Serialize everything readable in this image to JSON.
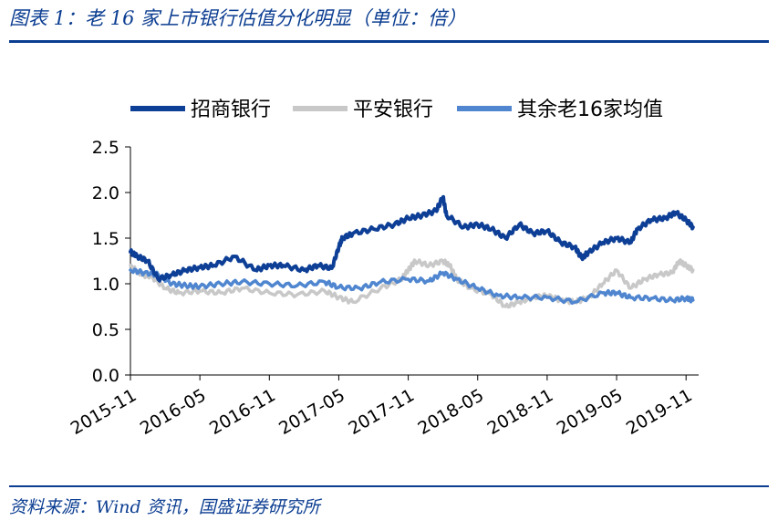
{
  "header": {
    "title": "图表 1：老 16 家上市银行估值分化明显（单位：倍）"
  },
  "footer": {
    "source": "资料来源：Wind 资讯，国盛证券研究所"
  },
  "colors": {
    "accent": "#0b3d91"
  },
  "chart_data": {
    "type": "line",
    "title": "",
    "xlabel": "",
    "ylabel": "",
    "ylim": [
      0,
      2.5
    ],
    "yticks": [
      "0.0",
      "0.5",
      "1.0",
      "1.5",
      "2.0",
      "2.5"
    ],
    "xticks": [
      "2015-11",
      "2016-05",
      "2016-11",
      "2017-05",
      "2017-11",
      "2018-05",
      "2018-11",
      "2019-05",
      "2019-11"
    ],
    "grid": false,
    "legend_position": "top",
    "series": [
      {
        "name": "招商银行",
        "color": "#0e3f96",
        "x": [
          0,
          0.1,
          0.25,
          0.4,
          0.6,
          0.8,
          1.0,
          1.2,
          1.5,
          1.8,
          2.0,
          2.2,
          2.5,
          2.7,
          2.9,
          3.0,
          3.05,
          3.2,
          3.5,
          3.8,
          4.0,
          4.2,
          4.4,
          4.5,
          4.55,
          4.8,
          5.0,
          5.2,
          5.4,
          5.6,
          5.8,
          6.0,
          6.2,
          6.4,
          6.5,
          6.6,
          6.8,
          7.0,
          7.2,
          7.3,
          7.5,
          7.7,
          7.85,
          8.0,
          8.1
        ],
        "y": [
          1.35,
          1.3,
          1.25,
          1.05,
          1.1,
          1.15,
          1.18,
          1.2,
          1.3,
          1.15,
          1.2,
          1.2,
          1.15,
          1.2,
          1.17,
          1.4,
          1.5,
          1.55,
          1.6,
          1.65,
          1.72,
          1.75,
          1.8,
          1.95,
          1.75,
          1.62,
          1.65,
          1.6,
          1.5,
          1.65,
          1.55,
          1.58,
          1.45,
          1.4,
          1.28,
          1.35,
          1.45,
          1.5,
          1.45,
          1.6,
          1.7,
          1.72,
          1.78,
          1.7,
          1.62
        ]
      },
      {
        "name": "平安银行",
        "color": "#c8c8c8",
        "x": [
          0,
          0.15,
          0.3,
          0.5,
          0.7,
          1.0,
          1.3,
          1.6,
          2.0,
          2.4,
          2.8,
          3.0,
          3.2,
          3.6,
          3.9,
          4.0,
          4.1,
          4.3,
          4.5,
          4.6,
          4.7,
          4.9,
          5.2,
          5.4,
          5.6,
          5.8,
          6.0,
          6.2,
          6.4,
          6.6,
          6.8,
          7.0,
          7.2,
          7.4,
          7.6,
          7.8,
          7.9,
          8.0,
          8.1
        ],
        "y": [
          1.2,
          1.1,
          1.08,
          0.95,
          0.9,
          0.92,
          0.9,
          0.95,
          0.9,
          0.88,
          0.92,
          0.85,
          0.8,
          0.95,
          1.05,
          1.15,
          1.25,
          1.2,
          1.25,
          1.2,
          1.05,
          0.95,
          0.88,
          0.75,
          0.8,
          0.85,
          0.87,
          0.82,
          0.8,
          0.85,
          1.0,
          1.15,
          0.95,
          1.05,
          1.1,
          1.12,
          1.25,
          1.2,
          1.15
        ]
      },
      {
        "name": "其余老16家均值",
        "color": "#4f86cf",
        "x": [
          0,
          0.2,
          0.4,
          0.6,
          0.8,
          1.0,
          1.3,
          1.6,
          2.0,
          2.4,
          2.8,
          3.0,
          3.3,
          3.6,
          4.0,
          4.3,
          4.5,
          4.7,
          5.0,
          5.3,
          5.6,
          6.0,
          6.4,
          6.8,
          7.0,
          7.2,
          7.5,
          7.8,
          8.0,
          8.1
        ],
        "y": [
          1.15,
          1.12,
          1.1,
          1.0,
          0.98,
          0.97,
          1.0,
          1.02,
          1.0,
          0.98,
          1.02,
          0.96,
          0.95,
          1.02,
          1.05,
          1.03,
          1.12,
          1.05,
          0.95,
          0.87,
          0.85,
          0.85,
          0.8,
          0.9,
          0.9,
          0.85,
          0.84,
          0.82,
          0.84,
          0.82
        ]
      }
    ]
  }
}
